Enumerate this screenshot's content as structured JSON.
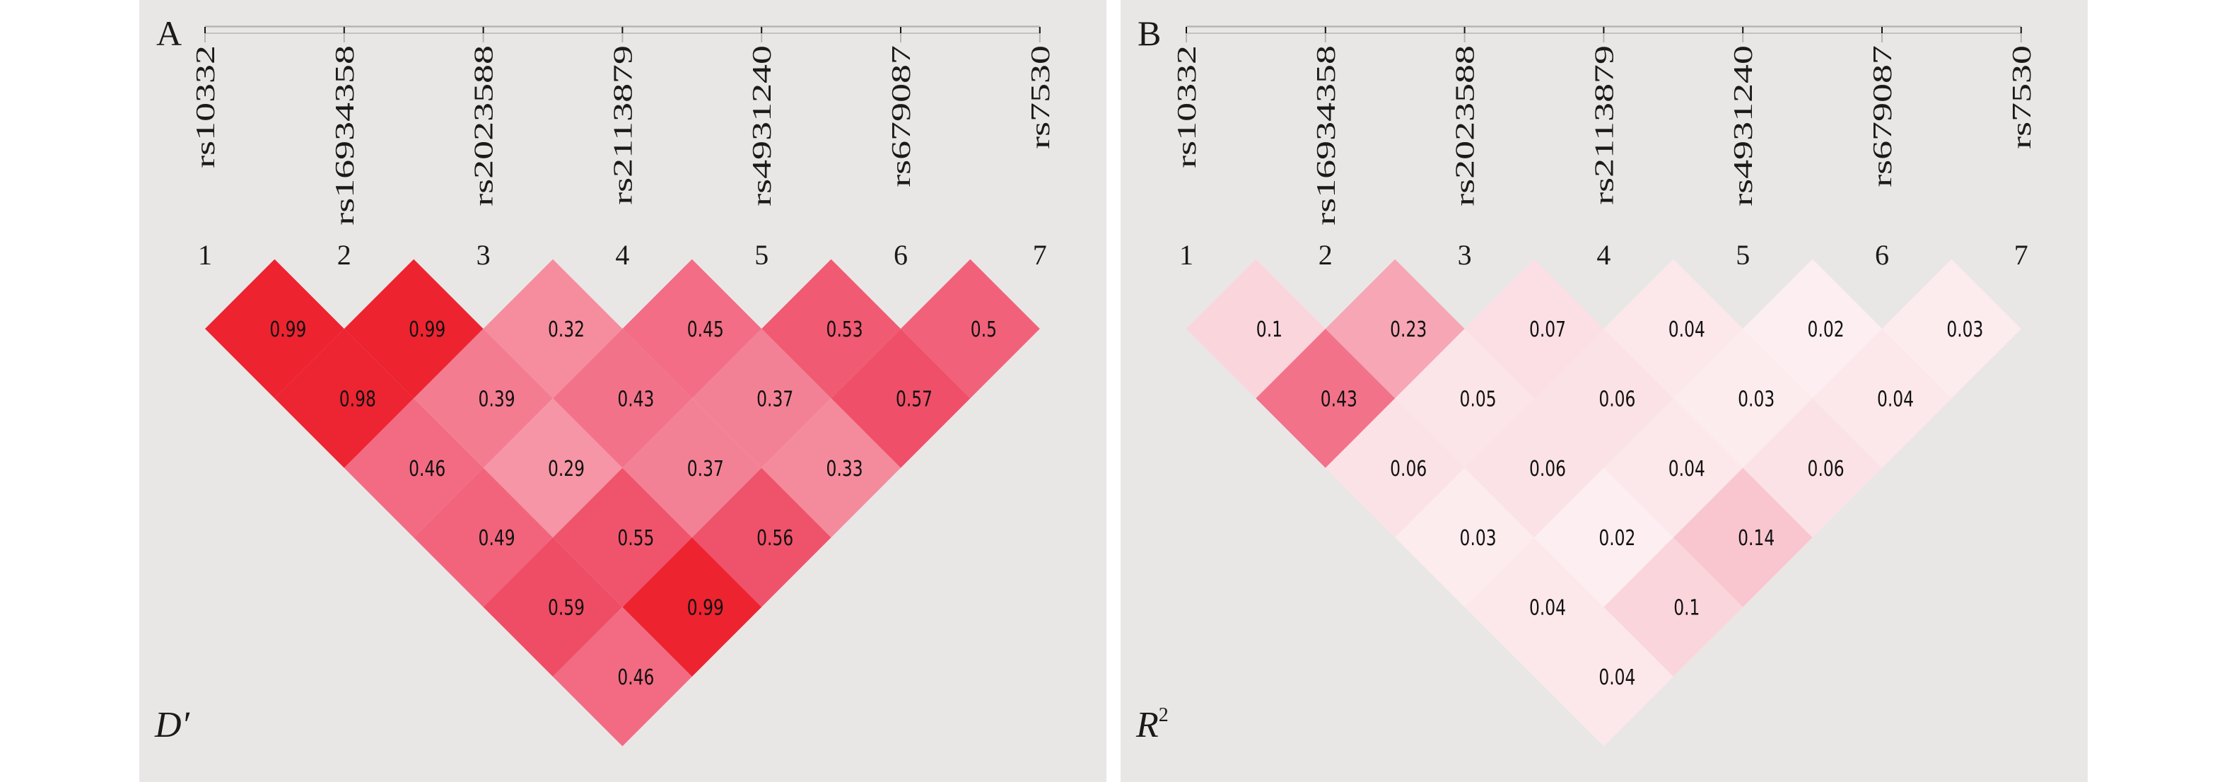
{
  "chart_data": [
    {
      "type": "heatmap",
      "panel_label": "A",
      "measure": "D′",
      "measure_base": "D′",
      "measure_sup": "",
      "snps": [
        "rs10332",
        "rs16934358",
        "rs2023588",
        "rs2113879",
        "rs4931240",
        "rs679087",
        "rs7530"
      ],
      "indices": [
        "1",
        "2",
        "3",
        "4",
        "5",
        "6",
        "7"
      ],
      "matrix_by_distance": [
        [
          0.99,
          0.99,
          0.32,
          0.45,
          0.53,
          0.5
        ],
        [
          0.98,
          0.39,
          0.43,
          0.37,
          0.57
        ],
        [
          0.46,
          0.29,
          0.37,
          0.33
        ],
        [
          0.49,
          0.55,
          0.56
        ],
        [
          0.59,
          0.99
        ],
        [
          0.46
        ]
      ],
      "labels_by_distance": [
        [
          "0.99",
          "0.99",
          "0.32",
          "0.45",
          "0.53",
          "0.5"
        ],
        [
          "0.98",
          "0.39",
          "0.43",
          "0.37",
          "0.57"
        ],
        [
          "0.46",
          "0.29",
          "0.37",
          "0.33"
        ],
        [
          "0.49",
          "0.55",
          "0.56"
        ],
        [
          "0.59",
          "0.99"
        ],
        [
          "0.46"
        ]
      ]
    },
    {
      "type": "heatmap",
      "panel_label": "B",
      "measure": "R2",
      "measure_base": "R",
      "measure_sup": "2",
      "snps": [
        "rs10332",
        "rs16934358",
        "rs2023588",
        "rs2113879",
        "rs4931240",
        "rs679087",
        "rs7530"
      ],
      "indices": [
        "1",
        "2",
        "3",
        "4",
        "5",
        "6",
        "7"
      ],
      "matrix_by_distance": [
        [
          0.1,
          0.23,
          0.07,
          0.04,
          0.02,
          0.03
        ],
        [
          0.43,
          0.05,
          0.06,
          0.03,
          0.04
        ],
        [
          0.06,
          0.06,
          0.04,
          0.06
        ],
        [
          0.03,
          0.02,
          0.14
        ],
        [
          0.04,
          0.1
        ],
        [
          0.04
        ]
      ],
      "labels_by_distance": [
        [
          "0.1",
          "0.23",
          "0.07",
          "0.04",
          "0.02",
          "0.03"
        ],
        [
          "0.43",
          "0.05",
          "0.06",
          "0.03",
          "0.04"
        ],
        [
          "0.06",
          "0.06",
          "0.04",
          "0.06"
        ],
        [
          "0.03",
          "0.02",
          "0.14"
        ],
        [
          "0.04",
          "0.1"
        ],
        [
          "0.04"
        ]
      ]
    }
  ],
  "colors": {
    "panel_background": "#e9e7e6",
    "axis_line": "#b5b5b5",
    "axis_tick": "#111111",
    "colormap": [
      [
        0.0,
        "#fdf6f7"
      ],
      [
        0.04,
        "#fce8eb"
      ],
      [
        0.1,
        "#fad5dc"
      ],
      [
        0.14,
        "#f9c6d0"
      ],
      [
        0.23,
        "#f6a6b4"
      ],
      [
        0.3,
        "#f592a2"
      ],
      [
        0.43,
        "#f2728a"
      ],
      [
        0.5,
        "#f1627a"
      ],
      [
        0.57,
        "#ef4f68"
      ],
      [
        0.99,
        "#ed2330"
      ],
      [
        1.0,
        "#ed1c24"
      ]
    ]
  }
}
